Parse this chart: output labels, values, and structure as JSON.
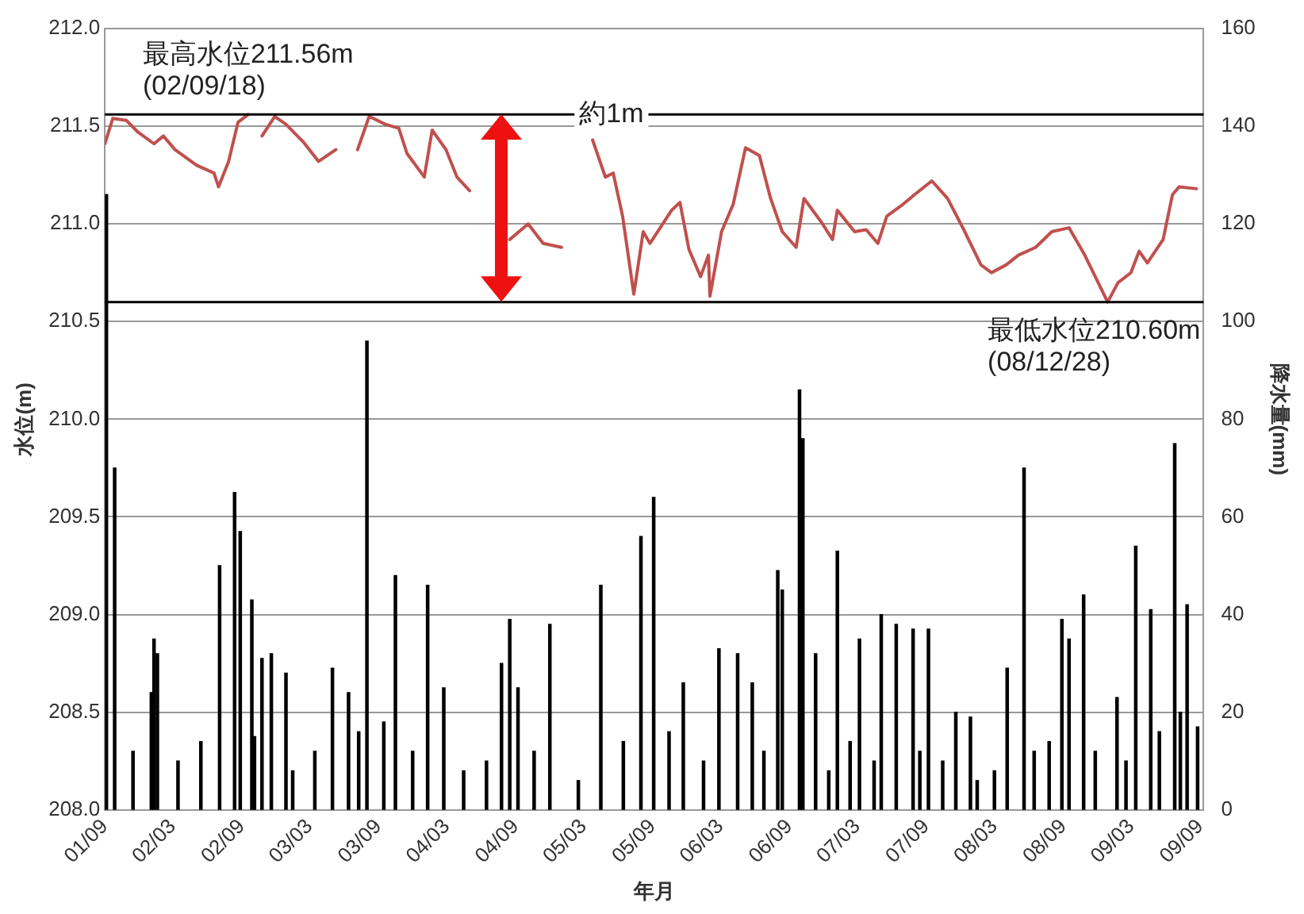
{
  "chart_data": {
    "type": "bar",
    "xlabel": "年月",
    "ylabel": "水位(m)",
    "y2label": "降水量(mm)",
    "xlim": [
      "2001-09-01",
      "2009-09-10"
    ],
    "xticks": [
      {
        "value": "2001-09",
        "label": "01/09"
      },
      {
        "value": "2002-03",
        "label": "02/03"
      },
      {
        "value": "2002-09",
        "label": "02/09"
      },
      {
        "value": "2003-03",
        "label": "03/03"
      },
      {
        "value": "2003-09",
        "label": "03/09"
      },
      {
        "value": "2004-03",
        "label": "04/03"
      },
      {
        "value": "2004-09",
        "label": "04/09"
      },
      {
        "value": "2005-03",
        "label": "05/03"
      },
      {
        "value": "2005-09",
        "label": "05/09"
      },
      {
        "value": "2006-03",
        "label": "06/03"
      },
      {
        "value": "2006-09",
        "label": "06/09"
      },
      {
        "value": "2007-03",
        "label": "07/03"
      },
      {
        "value": "2007-09",
        "label": "07/09"
      },
      {
        "value": "2008-03",
        "label": "08/03"
      },
      {
        "value": "2008-09",
        "label": "08/09"
      },
      {
        "value": "2009-03",
        "label": "09/03"
      },
      {
        "value": "2009-09",
        "label": "09/09"
      }
    ],
    "ylim": [
      208,
      212
    ],
    "yticks": [
      {
        "value": 208,
        "label": "208.0"
      },
      {
        "value": 208.5,
        "label": "208.5"
      },
      {
        "value": 209,
        "label": "209.0"
      },
      {
        "value": 209.5,
        "label": "209.5"
      },
      {
        "value": 210,
        "label": "210.0"
      },
      {
        "value": 210.5,
        "label": "210.5"
      },
      {
        "value": 211,
        "label": "211.0"
      },
      {
        "value": 211.5,
        "label": "211.5"
      },
      {
        "value": 212,
        "label": "212.0"
      }
    ],
    "y2lim": [
      0,
      160
    ],
    "y2ticks": [
      0,
      20,
      40,
      60,
      80,
      100,
      120,
      140,
      160
    ],
    "grid": "y",
    "series": [
      {
        "axis": "y2",
        "color": "#000000",
        "x": [
          "2001-09-05",
          "2001-09-27",
          "2001-11-15",
          "2002-01-03",
          "2002-01-10",
          "2002-01-19",
          "2002-03-15",
          "2002-05-15",
          "2002-07-04",
          "2002-08-13",
          "2002-08-28",
          "2002-09-28",
          "2002-10-05",
          "2002-10-25",
          "2002-11-19",
          "2002-12-28",
          "2003-01-15",
          "2003-03-15",
          "2003-05-01",
          "2003-06-13",
          "2003-07-10",
          "2003-08-01",
          "2003-09-15",
          "2003-10-16",
          "2003-12-01",
          "2004-01-10",
          "2004-02-22",
          "2004-04-15",
          "2004-06-15",
          "2004-07-25",
          "2004-08-16",
          "2004-09-07",
          "2004-10-20",
          "2004-12-01",
          "2005-02-15",
          "2005-04-16",
          "2005-06-15",
          "2005-08-01",
          "2005-09-04",
          "2005-10-15",
          "2005-11-22",
          "2006-01-15",
          "2006-02-25",
          "2006-04-16",
          "2006-05-25",
          "2006-06-25",
          "2006-08-01",
          "2006-08-13",
          "2006-09-28",
          "2006-10-07",
          "2006-11-10",
          "2006-12-15",
          "2007-01-07",
          "2007-02-10",
          "2007-03-07",
          "2007-04-15",
          "2007-05-04",
          "2007-06-13",
          "2007-07-28",
          "2007-08-15",
          "2007-09-07",
          "2007-10-15",
          "2007-11-19",
          "2007-12-28",
          "2008-01-15",
          "2008-03-01",
          "2008-04-04",
          "2008-05-19",
          "2008-06-15",
          "2008-07-25",
          "2008-08-28",
          "2008-09-16",
          "2008-10-25",
          "2008-11-25",
          "2009-01-22",
          "2009-02-15",
          "2009-03-13",
          "2009-04-22",
          "2009-05-15",
          "2009-06-25",
          "2009-07-10",
          "2009-07-28",
          "2009-08-25"
        ],
        "values": [
          126,
          70,
          12,
          24,
          35,
          32,
          10,
          14,
          50,
          65,
          57,
          43,
          15,
          31,
          32,
          28,
          8,
          12,
          29,
          24,
          16,
          96,
          18,
          48,
          12,
          46,
          25,
          8,
          10,
          30,
          39,
          25,
          12,
          38,
          6,
          46,
          14,
          56,
          64,
          16,
          26,
          10,
          33,
          32,
          26,
          12,
          49,
          45,
          86,
          76,
          32,
          8,
          53,
          14,
          35,
          10,
          40,
          38,
          37,
          12,
          37,
          10,
          20,
          19,
          6,
          8,
          29,
          70,
          12,
          14,
          39,
          35,
          44,
          12,
          23,
          10,
          54,
          41,
          16,
          75,
          20,
          42,
          17
        ]
      },
      {
        "type": "line",
        "axis": "y",
        "color": "#c0504d",
        "x": [
          "2001-09-01",
          "2001-09-22",
          "2001-10-28",
          "2001-11-28",
          "2002-01-10",
          "2002-02-04",
          "2002-03-07",
          "2002-05-04",
          "2002-06-19",
          "2002-07-01",
          "2002-07-28",
          "2002-08-22",
          "2002-09-18",
          "2002-10-05",
          "2002-10-25",
          "2002-11-28",
          "2002-12-28",
          "2003-02-12",
          "2003-03-25",
          "2003-05-10",
          "2003-06-10",
          "2003-07-07",
          "2003-08-07",
          "2003-09-19",
          "2003-10-25",
          "2003-11-16",
          "2004-01-01",
          "2004-01-22",
          "2004-02-28",
          "2004-03-28",
          "2004-05-01",
          "2004-07-01",
          "2004-08-16",
          "2004-10-04",
          "2004-11-13",
          "2005-01-01",
          "2005-02-15",
          "2005-03-25",
          "2005-04-28",
          "2005-05-19",
          "2005-06-13",
          "2005-07-13",
          "2005-08-07",
          "2005-08-25",
          "2005-10-22",
          "2005-11-13",
          "2005-12-07",
          "2006-01-07",
          "2006-01-28",
          "2006-02-01",
          "2006-03-04",
          "2006-04-04",
          "2006-05-07",
          "2006-06-13",
          "2006-07-13",
          "2006-08-13",
          "2006-09-19",
          "2006-10-10",
          "2006-11-25",
          "2006-12-25",
          "2007-01-07",
          "2007-02-22",
          "2007-03-25",
          "2007-04-25",
          "2007-05-19",
          "2007-07-01",
          "2007-08-01",
          "2007-09-16",
          "2007-10-28",
          "2007-12-13",
          "2008-01-25",
          "2008-02-22",
          "2008-04-01",
          "2008-05-04",
          "2008-06-19",
          "2008-08-01",
          "2008-09-16",
          "2008-10-28",
          "2008-12-28",
          "2009-01-25",
          "2009-02-28",
          "2009-03-22",
          "2009-04-13",
          "2009-05-25",
          "2009-06-19",
          "2009-07-07",
          "2009-08-22"
        ],
        "values": [
          211.41,
          211.54,
          211.53,
          211.47,
          211.41,
          211.45,
          211.38,
          211.3,
          211.26,
          211.19,
          211.32,
          211.52,
          211.56,
          null,
          211.45,
          211.55,
          211.51,
          211.42,
          211.32,
          211.38,
          null,
          211.38,
          211.55,
          211.51,
          211.49,
          211.36,
          211.24,
          211.48,
          211.38,
          211.24,
          211.17,
          null,
          210.92,
          211.0,
          210.9,
          210.88,
          null,
          211.43,
          211.24,
          211.26,
          211.04,
          210.64,
          210.96,
          210.9,
          211.07,
          211.11,
          210.87,
          210.73,
          210.84,
          210.63,
          210.96,
          211.1,
          211.39,
          211.35,
          211.13,
          210.96,
          210.88,
          211.13,
          211.01,
          210.92,
          211.07,
          210.96,
          210.97,
          210.9,
          211.04,
          211.1,
          211.15,
          211.22,
          211.13,
          210.96,
          210.79,
          210.75,
          210.79,
          210.84,
          210.88,
          210.96,
          210.98,
          210.84,
          210.6,
          210.7,
          210.75,
          210.86,
          210.8,
          210.92,
          211.15,
          211.19,
          211.18
        ]
      }
    ],
    "ref_lines": [
      {
        "axis": "y",
        "value": 211.56,
        "color": "#000000"
      },
      {
        "axis": "y",
        "value": 210.6,
        "color": "#000000"
      }
    ],
    "annotations": [
      {
        "text": "最高水位211.56m\n(02/09/18)",
        "x": "2002-09-18",
        "y": 211.56
      },
      {
        "text": "約1m",
        "x": "2004-07-25",
        "y": 211.56
      },
      {
        "text": "最低水位210.60m\n(08/12/28)",
        "x": "2008-12-28",
        "y": 210.6
      }
    ]
  }
}
